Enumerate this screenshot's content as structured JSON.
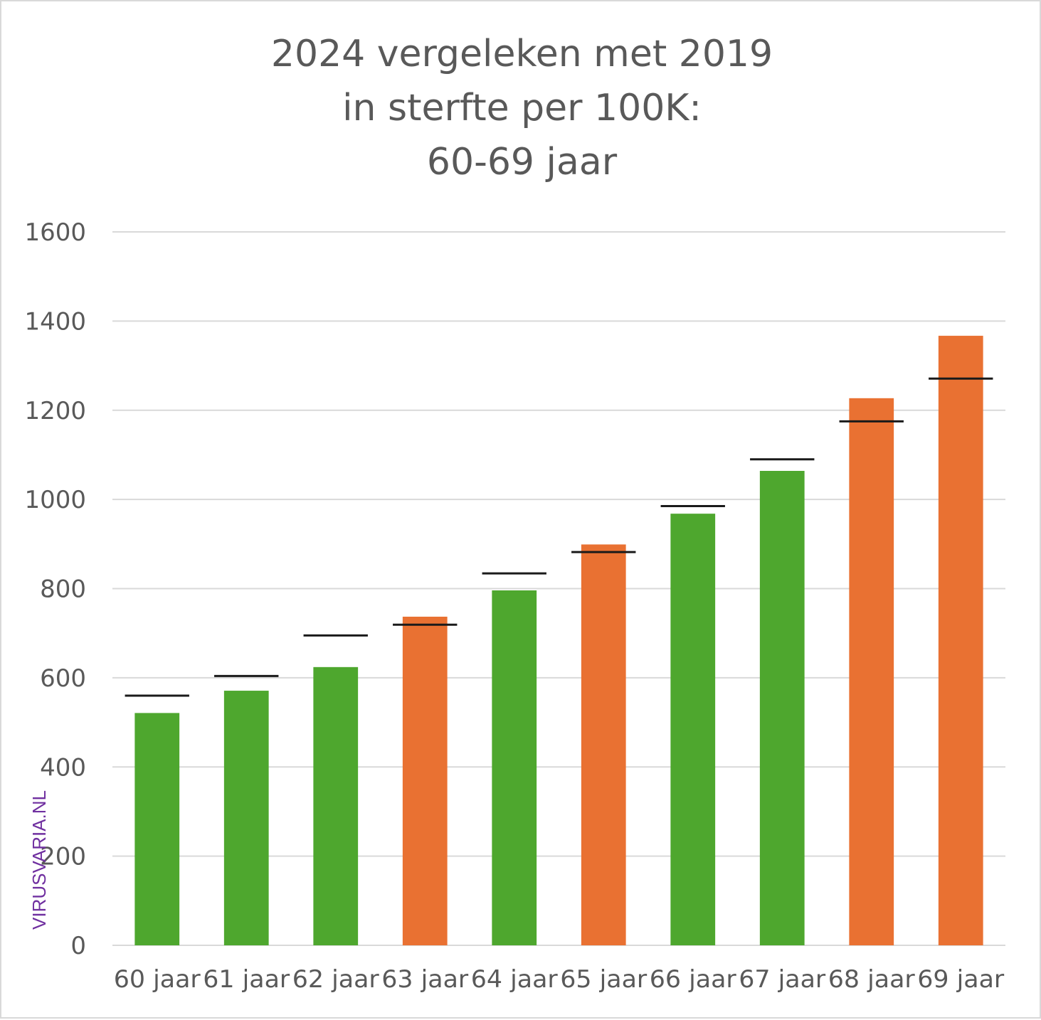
{
  "chart_data": {
    "type": "bar",
    "title_lines": [
      "2024 vergeleken met 2019",
      "in sterfte per 100K:",
      "60-69 jaar"
    ],
    "categories": [
      "60 jaar",
      "61 jaar",
      "62 jaar",
      "63 jaar",
      "64 jaar",
      "65 jaar",
      "66 jaar",
      "67 jaar",
      "68 jaar",
      "69 jaar"
    ],
    "series": [
      {
        "values": [
          521,
          571,
          624,
          737,
          796,
          899,
          968,
          1064,
          1227,
          1367
        ],
        "point_colors": [
          "#4ea72e",
          "#4ea72e",
          "#4ea72e",
          "#e97132",
          "#4ea72e",
          "#e97132",
          "#4ea72e",
          "#4ea72e",
          "#e97132",
          "#e97132"
        ]
      },
      {
        "type": "marker-line",
        "values": [
          560,
          604,
          695,
          719,
          834,
          882,
          985,
          1090,
          1175,
          1271
        ],
        "color": "#1a1a1a"
      }
    ],
    "ylim": [
      0,
      1600
    ],
    "yticks": [
      0,
      200,
      400,
      600,
      800,
      1000,
      1200,
      1400,
      1600
    ],
    "grid": true,
    "gridline_color": "#d9d9d9",
    "legend": "none"
  },
  "watermark": "VIRUSVARIA.NL"
}
